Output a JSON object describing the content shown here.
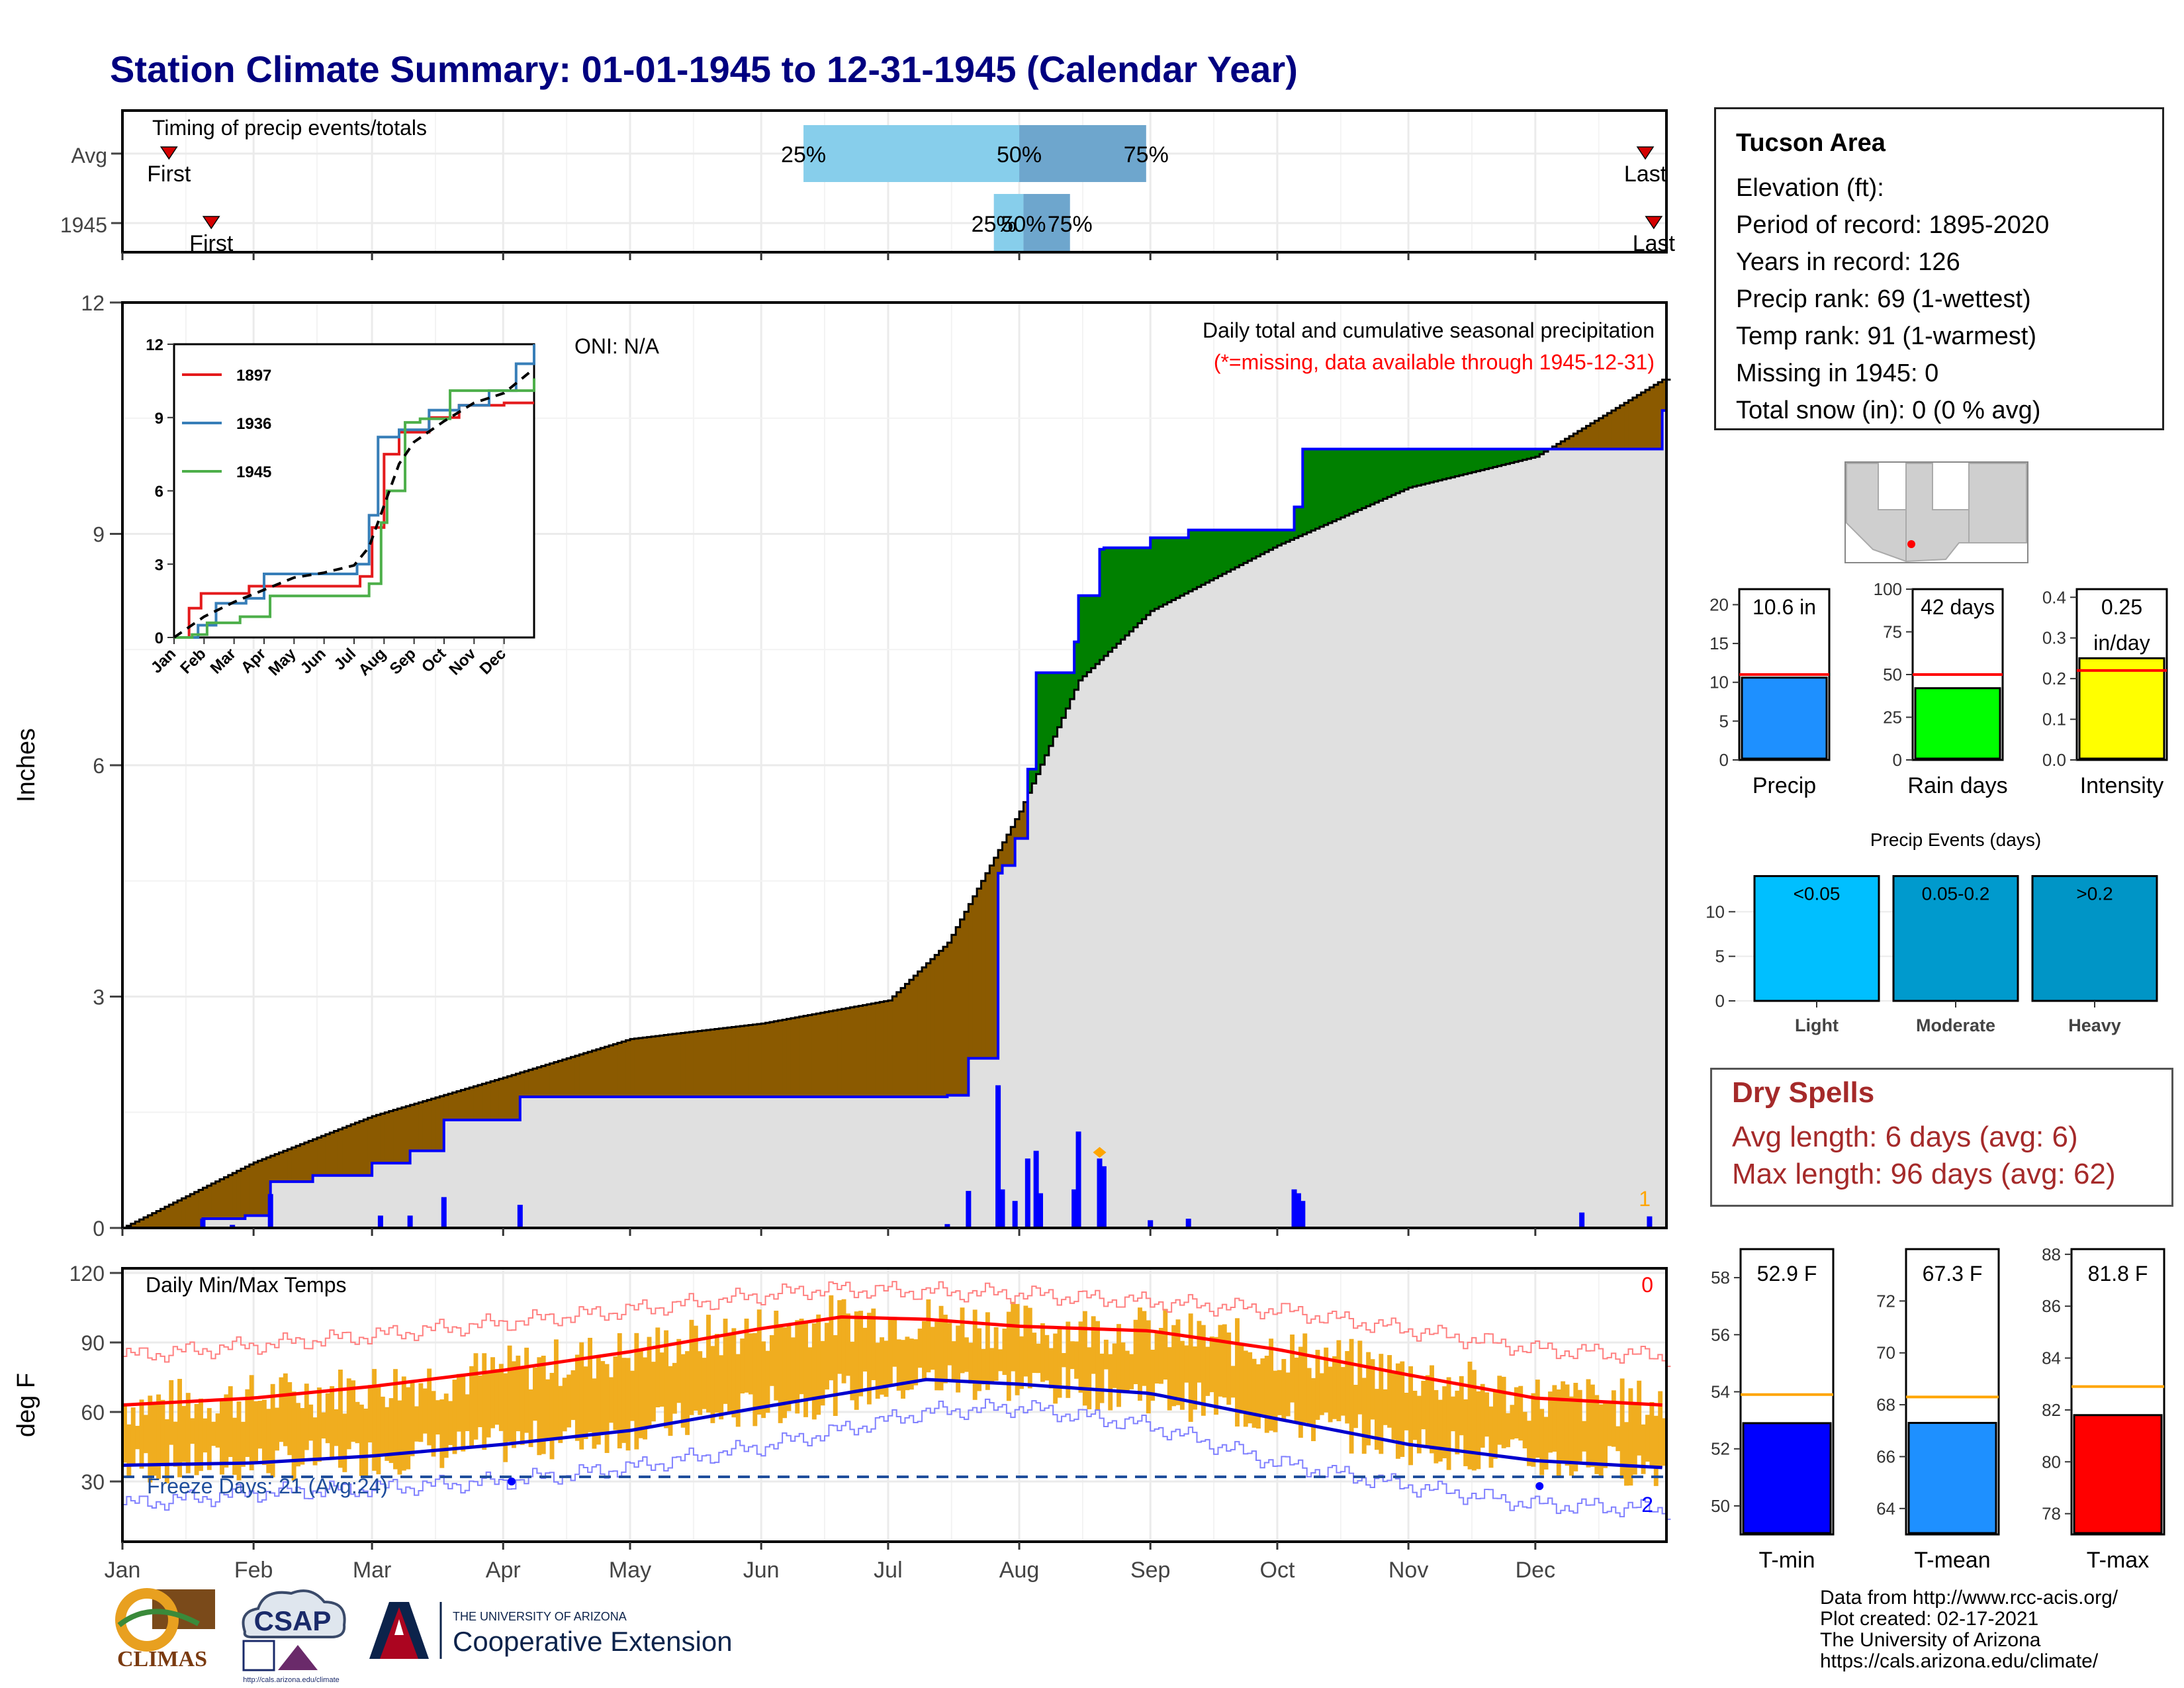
{
  "title": "Station Climate Summary: 01-01-1945 to 12-31-1945 (Calendar Year)",
  "timing_panel": {
    "label": "Timing of precip events/totals",
    "rows": [
      {
        "name": "Avg",
        "first_label": "First",
        "last_label": "Last",
        "p25": "25%",
        "p50": "50%",
        "p75": "75%",
        "first_date": "1945-01-12",
        "last_date": "1945-12-27",
        "p25_date": "1945-06-11",
        "p50_date": "1945-08-01",
        "p75_date": "1945-08-31"
      },
      {
        "name": "1945",
        "first_label": "First",
        "last_label": "Last",
        "p25": "25%",
        "p50": "50%",
        "p75": "75%",
        "first_date": "1945-01-22",
        "last_date": "1945-12-29",
        "p25_date": "1945-07-26",
        "p50_date": "1945-08-02",
        "p75_date": "1945-08-13"
      }
    ],
    "colors": {
      "light": "#87ceeb",
      "dark": "#6ea6cd",
      "marker": "#d40000"
    }
  },
  "main_panel": {
    "ylabel": "Inches",
    "oni": "ONI: N/A",
    "caption": "Daily total and cumulative seasonal precipitation",
    "missing_note": "(*=missing, data available through 1945-12-31)",
    "corner_count": "1",
    "yticks": [
      "0",
      "3",
      "6",
      "9",
      "12"
    ],
    "colors": {
      "below": "#8b5a00",
      "above": "#008000",
      "fill": "#e0e0e0",
      "obs": "#0000ff",
      "avg": "#000000"
    }
  },
  "inset": {
    "yticks": [
      "0",
      "3",
      "6",
      "9",
      "12"
    ],
    "months": [
      "Jan",
      "Feb",
      "Mar",
      "Apr",
      "May",
      "Jun",
      "Jul",
      "Aug",
      "Sep",
      "Oct",
      "Nov",
      "Dec"
    ],
    "legend": [
      {
        "name": "1897",
        "color": "#e41a1c"
      },
      {
        "name": "1936",
        "color": "#377eb8"
      },
      {
        "name": "1945",
        "color": "#4daf4a"
      }
    ]
  },
  "temp_panel": {
    "ylabel": "deg F",
    "label": "Daily Min/Max Temps",
    "top_count": "0",
    "bottom_count": "2",
    "freeze": "Freeze Days: 21 (Avg:24)",
    "yticks": [
      "30",
      "60",
      "90",
      "120"
    ],
    "colors": {
      "bars": "#f0ad1f",
      "max": "#ff0000",
      "min": "#0000cd",
      "freeze": "#1f4e9c"
    }
  },
  "months": [
    "Jan",
    "Feb",
    "Mar",
    "Apr",
    "May",
    "Jun",
    "Jul",
    "Aug",
    "Sep",
    "Oct",
    "Nov",
    "Dec"
  ],
  "info": {
    "name": "Tucson Area",
    "lines": [
      "Elevation (ft):",
      "Period of record: 1895-2020",
      "Years in record: 126",
      "Precip rank: 69 (1-wettest)",
      "Temp rank: 91 (1-warmest)",
      "Missing in 1945: 0",
      "Total snow (in): 0 (0 % avg)"
    ]
  },
  "bar_gauges": [
    {
      "label": "Precip",
      "value_text": "10.6 in",
      "value": 10.6,
      "avg": 11.0,
      "ymax": 22,
      "yticks": [
        "0",
        "5",
        "10",
        "15",
        "20"
      ],
      "tick_values": [
        0,
        5,
        10,
        15,
        20
      ],
      "color": "#1e90ff"
    },
    {
      "label": "Rain days",
      "value_text": "42 days",
      "value": 42,
      "avg": 50,
      "ymax": 100,
      "yticks": [
        "0",
        "25",
        "50",
        "75",
        "100"
      ],
      "tick_values": [
        0,
        25,
        50,
        75,
        100
      ],
      "color": "#00ff00"
    },
    {
      "label": "Intensity",
      "value_text": "0.25",
      "value_text2": "in/day",
      "value": 0.25,
      "avg": 0.22,
      "ymax": 0.42,
      "yticks": [
        "0.0",
        "0.1",
        "0.2",
        "0.3",
        "0.4"
      ],
      "tick_values": [
        0,
        0.1,
        0.2,
        0.3,
        0.4
      ],
      "color": "#ffff00"
    }
  ],
  "precip_events": {
    "title": "Precip Events (days)",
    "yticks": [
      "0",
      "5",
      "10"
    ],
    "categories": [
      {
        "label": "Light",
        "range": "<0.05",
        "value": 14,
        "color": "#00bfff"
      },
      {
        "label": "Moderate",
        "range": "0.05-0.2",
        "value": 14,
        "color": "#009acd"
      },
      {
        "label": "Heavy",
        "range": ">0.2",
        "value": 14,
        "color": "#0095c6"
      }
    ]
  },
  "dry_spells": {
    "title": "Dry Spells",
    "avg_line": "Avg length: 6 days (avg: 6)",
    "max_line": "Max length: 96 days (avg: 62)"
  },
  "temp_gauges": [
    {
      "label": "T-min",
      "value_text": "52.9 F",
      "value": 52.9,
      "avg": 53.9,
      "ymin": 49,
      "ymax": 59,
      "yticks": [
        "50",
        "52",
        "54",
        "56",
        "58"
      ],
      "tick_values": [
        50,
        52,
        54,
        56,
        58
      ],
      "color": "#0000ff"
    },
    {
      "label": "T-mean",
      "value_text": "67.3 F",
      "value": 67.3,
      "avg": 68.3,
      "ymin": 63,
      "ymax": 74,
      "yticks": [
        "64",
        "66",
        "68",
        "70",
        "72"
      ],
      "tick_values": [
        64,
        66,
        68,
        70,
        72
      ],
      "color": "#1e90ff"
    },
    {
      "label": "T-max",
      "value_text": "81.8 F",
      "value": 81.8,
      "avg": 82.9,
      "ymin": 77.2,
      "ymax": 88.2,
      "yticks": [
        "78",
        "80",
        "82",
        "84",
        "86",
        "88"
      ],
      "tick_values": [
        78,
        80,
        82,
        84,
        86,
        88
      ],
      "color": "#ff0000"
    }
  ],
  "logos": {
    "climas": "CLIMAS",
    "csap": "CSAP",
    "csap_url": "http://cals.arizona.edu/climate",
    "ua_small": "THE UNIVERSITY OF ARIZONA",
    "coop": "Cooperative Extension"
  },
  "credits": [
    "Data from http://www.rcc-acis.org/",
    "Plot created: 02-17-2021",
    "The University of Arizona",
    "https://cals.arizona.edu/climate/"
  ],
  "chart_data": [
    {
      "type": "line",
      "title": "Daily total and cumulative seasonal precipitation",
      "ylabel": "Inches",
      "ylim": [
        0,
        12
      ],
      "grid": true,
      "x_domain": [
        "1945-01-01",
        "1945-12-31"
      ],
      "series": [
        {
          "name": "1945",
          "kind": "cumulative",
          "x": [
            "1945-01-01",
            "1945-01-20",
            "1945-01-30",
            "1945-02-05",
            "1945-02-15",
            "1945-03-01",
            "1945-03-10",
            "1945-03-18",
            "1945-04-01",
            "1945-04-05",
            "1945-07-15",
            "1945-07-20",
            "1945-07-27",
            "1945-07-28",
            "1945-07-31",
            "1945-08-03",
            "1945-08-05",
            "1945-08-14",
            "1945-08-15",
            "1945-08-20",
            "1945-08-21",
            "1945-09-01",
            "1945-09-10",
            "1945-09-30",
            "1945-10-05",
            "1945-10-07",
            "1945-12-06",
            "1945-12-31"
          ],
          "y": [
            0,
            0.12,
            0.16,
            0.6,
            0.68,
            0.84,
            1.0,
            1.4,
            1.4,
            1.7,
            1.72,
            2.2,
            4.6,
            4.7,
            5.05,
            5.95,
            7.2,
            7.6,
            8.2,
            8.8,
            8.82,
            8.95,
            9.05,
            9.05,
            9.35,
            10.1,
            10.1,
            10.6
          ]
        },
        {
          "name": "Avg",
          "kind": "cumulative",
          "x": [
            "1945-01-01",
            "1945-02-01",
            "1945-03-01",
            "1945-04-01",
            "1945-05-01",
            "1945-06-01",
            "1945-07-01",
            "1945-07-15",
            "1945-08-01",
            "1945-08-15",
            "1945-09-01",
            "1945-10-01",
            "1945-11-01",
            "1945-12-01",
            "1945-12-31"
          ],
          "y": [
            0,
            0.85,
            1.45,
            1.95,
            2.45,
            2.65,
            2.95,
            3.7,
            5.4,
            7.1,
            8.0,
            8.85,
            9.6,
            10.0,
            11.0
          ]
        },
        {
          "name": "Daily precip",
          "kind": "daily",
          "x": [
            "1945-01-20",
            "1945-01-27",
            "1945-02-05",
            "1945-03-03",
            "1945-03-10",
            "1945-03-18",
            "1945-04-05",
            "1945-07-15",
            "1945-07-20",
            "1945-07-27",
            "1945-07-28",
            "1945-07-31",
            "1945-08-03",
            "1945-08-05",
            "1945-08-06",
            "1945-08-14",
            "1945-08-15",
            "1945-08-20",
            "1945-08-21",
            "1945-09-01",
            "1945-09-10",
            "1945-10-05",
            "1945-10-06",
            "1945-10-07",
            "1945-12-12",
            "1945-12-28"
          ],
          "y": [
            0.12,
            0.04,
            0.44,
            0.16,
            0.16,
            0.4,
            0.3,
            0.05,
            0.48,
            1.85,
            0.5,
            0.35,
            0.9,
            1.0,
            0.45,
            0.5,
            1.25,
            0.9,
            0.8,
            0.1,
            0.12,
            0.5,
            0.45,
            0.35,
            0.2,
            0.15
          ]
        }
      ]
    },
    {
      "type": "line",
      "title": "",
      "ylim": [
        0,
        12
      ],
      "xlabel": "",
      "ylabel": "",
      "series": [
        {
          "name": "1897",
          "x": [
            0,
            0.5,
            0.9,
            2.5,
            4.0,
            5.9,
            6.2,
            6.6,
            7.0,
            7.5,
            8.5,
            9.5,
            11.0,
            12.0
          ],
          "y": [
            0,
            1.2,
            1.8,
            2.1,
            2.1,
            2.1,
            2.5,
            4.5,
            7.5,
            8.4,
            9.0,
            9.5,
            9.6,
            9.6
          ]
        },
        {
          "name": "1936",
          "x": [
            0,
            0.8,
            1.4,
            2.4,
            3.0,
            5.5,
            6.1,
            6.5,
            6.8,
            7.5,
            8.5,
            9.5,
            10.5,
            11.4,
            12.0
          ],
          "y": [
            0,
            0.5,
            1.4,
            1.6,
            2.6,
            2.6,
            3.0,
            5.0,
            8.2,
            8.5,
            9.3,
            9.5,
            10.1,
            11.2,
            12.0
          ]
        },
        {
          "name": "1945",
          "x": [
            0,
            0.6,
            1.1,
            2.2,
            3.2,
            6.0,
            6.5,
            6.9,
            7.1,
            7.7,
            8.2,
            9.2,
            11.4,
            12.0
          ],
          "y": [
            0,
            0.12,
            0.6,
            0.85,
            1.7,
            1.7,
            2.2,
            4.7,
            6.0,
            8.8,
            8.95,
            10.1,
            10.1,
            10.6
          ]
        },
        {
          "name": "Avg",
          "x": [
            0,
            1,
            2,
            3,
            4,
            5,
            6,
            6.5,
            7,
            7.5,
            8,
            9,
            10,
            11,
            12
          ],
          "y": [
            0,
            0.85,
            1.45,
            1.95,
            2.45,
            2.65,
            2.95,
            3.7,
            5.4,
            7.1,
            8.0,
            8.85,
            9.6,
            10.0,
            11.0
          ]
        }
      ]
    },
    {
      "type": "line",
      "title": "Daily Min/Max Temps",
      "ylabel": "deg F",
      "ylim": [
        4,
        122
      ],
      "freeze_line": 32,
      "x_domain": [
        "1945-01-01",
        "1945-12-31"
      ],
      "series": [
        {
          "name": "Avg max",
          "x": [
            "1945-01-01",
            "1945-02-01",
            "1945-03-01",
            "1945-04-01",
            "1945-05-01",
            "1945-06-01",
            "1945-06-20",
            "1945-07-10",
            "1945-08-01",
            "1945-09-01",
            "1945-10-01",
            "1945-11-01",
            "1945-12-01",
            "1945-12-31"
          ],
          "y": [
            63,
            66,
            71,
            78,
            86,
            96,
            101,
            100,
            97,
            95,
            87,
            76,
            66,
            63
          ]
        },
        {
          "name": "Avg min",
          "x": [
            "1945-01-01",
            "1945-02-01",
            "1945-03-01",
            "1945-04-01",
            "1945-05-01",
            "1945-06-01",
            "1945-07-10",
            "1945-08-01",
            "1945-09-01",
            "1945-10-01",
            "1945-11-01",
            "1945-12-01",
            "1945-12-31"
          ],
          "y": [
            37,
            38,
            41,
            46,
            52,
            62,
            74,
            72,
            68,
            57,
            46,
            39,
            36
          ]
        },
        {
          "name": "Record max",
          "x": [
            "1945-01-01",
            "1945-03-01",
            "1945-05-01",
            "1945-06-15",
            "1945-08-01",
            "1945-10-01",
            "1945-12-01",
            "1945-12-31"
          ],
          "y": [
            84,
            93,
            104,
            113,
            111,
            104,
            87,
            84
          ]
        },
        {
          "name": "Record min",
          "x": [
            "1945-01-01",
            "1945-02-01",
            "1945-03-01",
            "1945-04-01",
            "1945-05-01",
            "1945-06-01",
            "1945-07-10",
            "1945-08-01",
            "1945-09-01",
            "1945-10-01",
            "1945-11-01",
            "1945-12-01",
            "1945-12-31"
          ],
          "y": [
            20,
            25,
            27,
            30,
            36,
            45,
            60,
            62,
            54,
            38,
            28,
            20,
            18
          ]
        }
      ]
    },
    {
      "type": "bar",
      "title": "Precip Events (days)",
      "categories": [
        "Light",
        "Moderate",
        "Heavy"
      ],
      "values": [
        14,
        14,
        14
      ]
    }
  ]
}
